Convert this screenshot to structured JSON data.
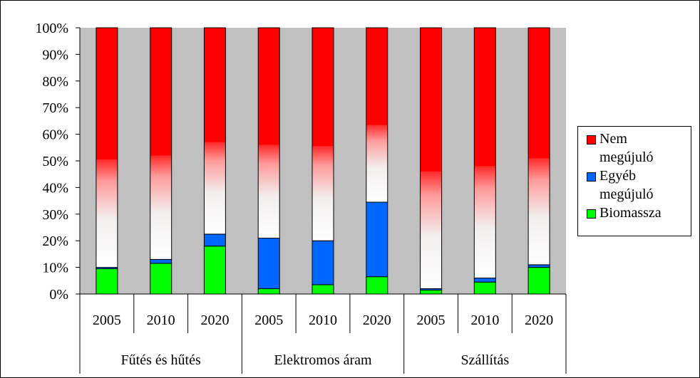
{
  "chart_data": {
    "type": "bar",
    "stacked": "percent",
    "groups": [
      "Fűtés és hűtés",
      "Elektromos áram",
      "Szállítás"
    ],
    "categories": [
      "2005",
      "2010",
      "2020",
      "2005",
      "2010",
      "2020",
      "2005",
      "2010",
      "2020"
    ],
    "category_group": [
      0,
      0,
      0,
      1,
      1,
      1,
      2,
      2,
      2
    ],
    "series": [
      {
        "name": "Biomassza",
        "color": "#00ff00",
        "values": [
          9.5,
          11.5,
          18,
          2,
          3.5,
          6.5,
          1.5,
          4.5,
          10
        ]
      },
      {
        "name": "Egyéb megújuló",
        "color": "#0066ff",
        "values": [
          0.5,
          1.5,
          4.5,
          19,
          16.5,
          28,
          0.5,
          1.5,
          1
        ]
      },
      {
        "name": "Nem megújuló",
        "color": "#ff0000",
        "gradient": true,
        "values": [
          90,
          87,
          77.5,
          79,
          80,
          65.5,
          98,
          94,
          89
        ]
      }
    ],
    "solid_red_from": [
      50.5,
      52,
      57,
      56,
      55.5,
      63.5,
      46,
      48,
      51
    ],
    "ylim": [
      0,
      100
    ],
    "yticks": [
      "0%",
      "10%",
      "20%",
      "30%",
      "40%",
      "50%",
      "60%",
      "70%",
      "80%",
      "90%",
      "100%"
    ],
    "grid": false,
    "plot_background": "#c0c0c0",
    "legend_position": "right",
    "legend": {
      "items": [
        {
          "label_line1": "Nem",
          "label_line2": "megújuló",
          "color": "#ff0000"
        },
        {
          "label_line1": "Egyéb",
          "label_line2": "megújuló",
          "color": "#0066ff"
        },
        {
          "label_line1": "Biomassza",
          "label_line2": "",
          "color": "#00ff00"
        }
      ]
    }
  }
}
